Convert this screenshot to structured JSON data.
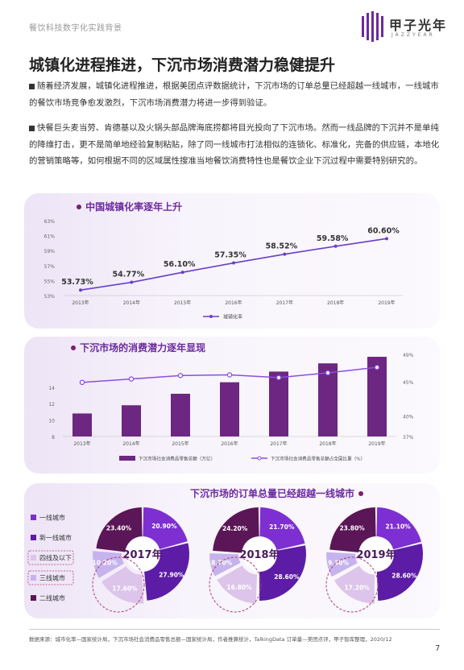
{
  "header": {
    "doc_title": "餐饮科技数字化实践背景",
    "brand_cn": "甲子光年",
    "brand_en": "JAZZYEAR"
  },
  "main_title": "城镇化进程推进，下沉市场消费潜力稳健提升",
  "paragraphs": [
    "随着经济发展，城镇化进程推进，根据美团点评数据统计，下沉市场的订单总量已经超越一线城市，一线城市的餐饮市场竞争愈发激烈，下沉市场消费潜力将进一步得到验证。",
    "快餐巨头麦当劳、肯德基以及火锅头部品牌海底捞都将目光投向了下沉市场。然而一线品牌的下沉并不是单纯的降维打击，更不是简单地经验复制粘贴，除了同一线城市打法相似的连锁化、标准化，完备的供应链，本地化的营销策略等，如何根据不同的区域属性搜准当地餐饮消费特性也是餐饮企业下沉过程中需要特别研究的。"
  ],
  "chart_data": [
    {
      "type": "line",
      "title": "中国城镇化率逐年上升",
      "categories": [
        "2013年",
        "2014年",
        "2015年",
        "2016年",
        "2017年",
        "2018年",
        "2019年"
      ],
      "series": [
        {
          "name": "城镇化率",
          "values": [
            53.73,
            54.77,
            56.1,
            57.35,
            58.52,
            59.58,
            60.6
          ]
        }
      ],
      "value_labels": [
        "53.73%",
        "54.77%",
        "56.10%",
        "57.35%",
        "58.52%",
        "59.58%",
        "60.60%"
      ],
      "y_ticks": [
        "53%",
        "55%",
        "57%",
        "59%",
        "61%",
        "63%"
      ],
      "ylim": [
        53,
        63
      ],
      "color": "#6a3fc9"
    },
    {
      "type": "bar",
      "title": "下沉市场的消费潜力逐年显现",
      "categories": [
        "2013年",
        "2014年",
        "2015年",
        "2016年",
        "2017年",
        "2018年",
        "2019年"
      ],
      "series": [
        {
          "name": "下沉市场社会消费品零售总额（万亿）",
          "kind": "bar",
          "values": [
            10.8,
            11.8,
            13.2,
            14.6,
            15.9,
            16.9,
            17.7
          ],
          "color": "#6d2682"
        },
        {
          "name": "下沉市场社会消费品零售总额占全国比重（%）",
          "kind": "line",
          "values": [
            44.9,
            45.4,
            45.9,
            46.0,
            45.6,
            46.3,
            47.1
          ],
          "color": "#8b4fe0"
        }
      ],
      "y_left_ticks": [
        "8",
        "10",
        "12",
        "14"
      ],
      "y_left_lim": [
        8,
        18
      ],
      "y_right_ticks": [
        "37%",
        "40%",
        "45%",
        "49%"
      ],
      "y_right_lim": [
        37,
        49
      ]
    },
    {
      "type": "pie",
      "title": "下沉市场的订单总量已经超越一线城市",
      "legend": [
        {
          "label": "一线城市",
          "color": "#7d2fd1"
        },
        {
          "label": "新一线城市",
          "color": "#5c1ca6"
        },
        {
          "label": "四线及以下",
          "color": "#dcc4ea"
        },
        {
          "label": "三线城市",
          "color": "#c6b3ee"
        },
        {
          "label": "二线城市",
          "color": "#5a1656"
        }
      ],
      "years": [
        {
          "year": "2017年",
          "values": [
            20.9,
            27.9,
            17.6,
            10.2,
            23.4
          ],
          "labels": [
            "20.90%",
            "27.90%",
            "17.60%",
            "10.20%",
            "23.40%"
          ]
        },
        {
          "year": "2018年",
          "values": [
            21.7,
            28.6,
            16.8,
            8.7,
            24.2
          ],
          "labels": [
            "21.70%",
            "28.60%",
            "16.80%",
            "8.70%",
            "24.20%"
          ]
        },
        {
          "year": "2019年",
          "values": [
            21.1,
            28.6,
            17.2,
            9.3,
            23.8
          ],
          "labels": [
            "21.10%",
            "28.60%",
            "17.20%",
            "9.30%",
            "23.80%"
          ]
        }
      ]
    }
  ],
  "footnote": "数据来源：城市化率—国家统计局，下沉市场社会消费品零售总额—国家统计局，作者推算统计，TalkingData 订单量—美团点评，甲子智库整理，2020/12",
  "page_number": "7"
}
